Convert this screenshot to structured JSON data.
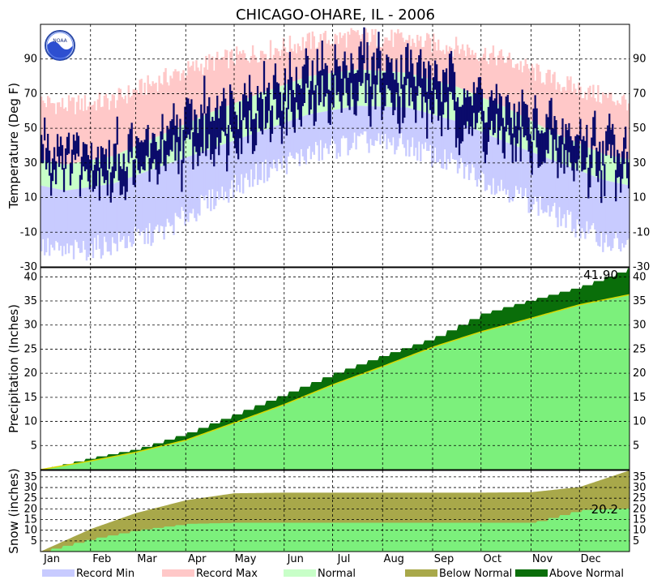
{
  "colors": {
    "record_min": "#c8cbff",
    "record_max": "#ffc8c8",
    "normal": "#c8ffc8",
    "observed_temp": "#0b0b6b",
    "precip_normal": "#7cf07c",
    "above_normal": "#0a6e0a",
    "below_normal": "#a8a84a",
    "normal_line": "#d8d800"
  },
  "logo_text": "NOAA",
  "chart_data": {
    "type": "area",
    "title": "CHICAGO-OHARE, IL - 2006",
    "xlabel": "",
    "x_months": [
      "Jan",
      "Feb",
      "Mar",
      "Apr",
      "May",
      "Jun",
      "Jul",
      "Aug",
      "Sep",
      "Oct",
      "Nov",
      "Dec"
    ],
    "grid": true,
    "panels": [
      {
        "name": "temperature",
        "ylabel": "Temperature (Deg F)",
        "ylim": [
          -30,
          110
        ],
        "ticks": [
          -30,
          -10,
          10,
          30,
          50,
          70,
          90
        ],
        "monthly": {
          "record_max": [
            63,
            66,
            78,
            88,
            94,
            100,
            103,
            101,
            97,
            90,
            77,
            68
          ],
          "normal_high": [
            29,
            34,
            46,
            59,
            70,
            80,
            84,
            82,
            74,
            62,
            47,
            35
          ],
          "normal_low": [
            14,
            18,
            28,
            38,
            48,
            58,
            63,
            62,
            54,
            42,
            31,
            20
          ],
          "record_min": [
            -22,
            -17,
            -10,
            8,
            24,
            35,
            42,
            40,
            28,
            15,
            0,
            -15
          ],
          "obs_high": [
            42,
            38,
            45,
            66,
            72,
            82,
            92,
            88,
            78,
            62,
            52,
            44
          ],
          "obs_low": [
            28,
            18,
            26,
            40,
            50,
            60,
            68,
            64,
            52,
            40,
            30,
            25
          ]
        }
      },
      {
        "name": "precipitation",
        "ylabel": "Precipitation (Inches)",
        "ylim": [
          0,
          41.9
        ],
        "ticks": [
          5,
          10,
          15,
          20,
          25,
          30,
          35,
          40
        ],
        "monthly_cumulative_normal": [
          0.0,
          1.8,
          3.6,
          6.1,
          9.7,
          13.5,
          17.6,
          21.4,
          25.4,
          28.6,
          31.4,
          34.2,
          36.3
        ],
        "monthly_cumulative_observed": [
          0.0,
          2.5,
          4.3,
          7.6,
          11.6,
          15.8,
          20.0,
          23.8,
          27.4,
          32.4,
          35.3,
          38.0,
          41.9
        ],
        "annotation": "41.90"
      },
      {
        "name": "snow",
        "ylabel": "Snow (inches)",
        "ylim": [
          0,
          38
        ],
        "ticks": [
          5,
          10,
          15,
          20,
          25,
          30,
          35
        ],
        "monthly_cumulative_normal": [
          0.0,
          10.5,
          18.0,
          24.0,
          27.3,
          27.6,
          27.6,
          27.6,
          27.6,
          27.6,
          27.8,
          30.2,
          38.0
        ],
        "monthly_cumulative_observed": [
          0.0,
          6.0,
          10.0,
          13.0,
          13.5,
          13.5,
          13.5,
          13.5,
          13.5,
          13.5,
          13.5,
          19.5,
          20.2
        ],
        "annotation": "20.2"
      }
    ],
    "legend": {
      "placement": "bottom",
      "entries": [
        "Record Min",
        "Record Max",
        "Normal",
        "Below Normal",
        "Above Normal"
      ]
    }
  }
}
